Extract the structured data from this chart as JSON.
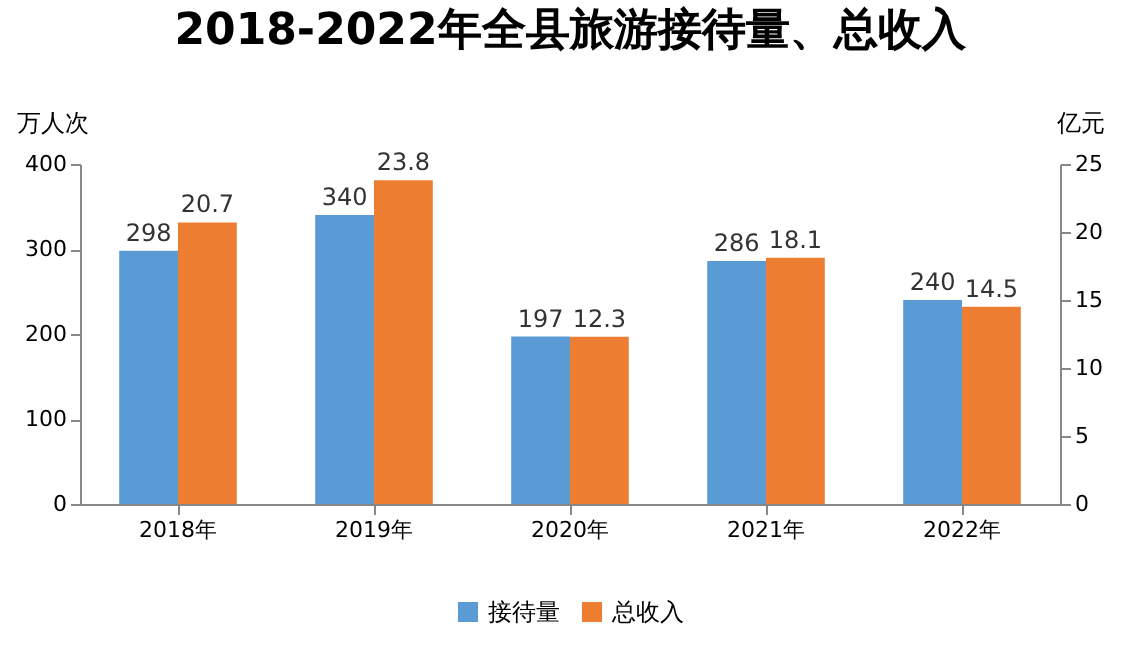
{
  "chart_data": {
    "type": "bar",
    "title": "2018-2022年全县旅游接待量、总收入",
    "ylabel": "万人次",
    "y2label": "亿元",
    "categories": [
      "2018年",
      "2019年",
      "2020年",
      "2021年",
      "2022年"
    ],
    "series": [
      {
        "name": "接待量",
        "color": "#5b9bd5",
        "values": [
          298,
          340,
          197,
          286,
          240
        ]
      },
      {
        "name": "总收入",
        "color": "#ed7d31",
        "values": [
          20.7,
          23.8,
          12.3,
          18.1,
          14.5
        ],
        "axis": "y2"
      }
    ],
    "ylim": [
      0,
      400
    ],
    "yticks": [
      0,
      100,
      200,
      300,
      400
    ],
    "y2lim": [
      0,
      25
    ],
    "y2ticks": [
      0,
      5,
      10,
      15,
      20,
      25
    ],
    "data_labels": true,
    "legend": "bottom",
    "grid": false
  }
}
